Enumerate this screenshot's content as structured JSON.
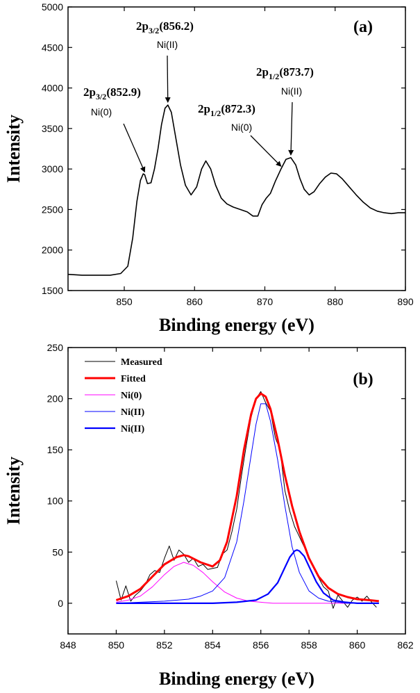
{
  "chart_data": [
    {
      "panel": "(a)",
      "type": "line",
      "xlabel": "Binding energy (eV)",
      "ylabel": "Intensity",
      "xlim": [
        842,
        890
      ],
      "ylim": [
        1500,
        5000
      ],
      "xticks": [
        850,
        860,
        870,
        880,
        890
      ],
      "yticks": [
        1500,
        2000,
        2500,
        3000,
        3500,
        4000,
        4500,
        5000
      ],
      "series": [
        {
          "name": "Ni 2p spectrum",
          "color": "#000000",
          "x": [
            842,
            844,
            846,
            848,
            849.5,
            850.5,
            851.2,
            851.8,
            852.3,
            852.7,
            852.9,
            853.3,
            853.8,
            854.3,
            854.8,
            855.3,
            855.8,
            856.2,
            856.7,
            857.3,
            858,
            858.7,
            859.5,
            860.3,
            861,
            861.6,
            862.3,
            863,
            863.8,
            864.6,
            865.5,
            866.5,
            867.5,
            868.3,
            869,
            869.6,
            870.2,
            870.8,
            871.5,
            872.3,
            873,
            873.7,
            874.4,
            875,
            875.6,
            876.3,
            877,
            877.8,
            878.6,
            879.4,
            880.2,
            881,
            882,
            883,
            884,
            885,
            886,
            887,
            888,
            889,
            890
          ],
          "y": [
            1700,
            1690,
            1690,
            1690,
            1710,
            1800,
            2150,
            2600,
            2860,
            2940,
            2930,
            2820,
            2830,
            3000,
            3250,
            3550,
            3750,
            3790,
            3700,
            3400,
            3050,
            2800,
            2680,
            2780,
            3000,
            3100,
            3000,
            2800,
            2640,
            2570,
            2530,
            2500,
            2470,
            2420,
            2420,
            2560,
            2640,
            2700,
            2850,
            3000,
            3120,
            3140,
            3050,
            2880,
            2750,
            2680,
            2720,
            2820,
            2900,
            2950,
            2940,
            2880,
            2780,
            2680,
            2590,
            2520,
            2480,
            2460,
            2450,
            2460,
            2460
          ]
        }
      ],
      "annotations": [
        {
          "orbital": "2p",
          "subscript": "3/2",
          "energy_text": "(852.9)",
          "state": "Ni(0)",
          "x": 852.9,
          "y": 2930
        },
        {
          "orbital": "2p",
          "subscript": "3/2",
          "energy_text": "(856.2)",
          "state": "Ni(II)",
          "x": 856.2,
          "y": 3790
        },
        {
          "orbital": "2p",
          "subscript": "1/2",
          "energy_text": "(872.3)",
          "state": "Ni(0)",
          "x": 872.3,
          "y": 3000
        },
        {
          "orbital": "2p",
          "subscript": "1/2",
          "energy_text": "(873.7)",
          "state": "Ni(II)",
          "x": 873.7,
          "y": 3140
        }
      ]
    },
    {
      "panel": "(b)",
      "type": "line",
      "xlabel": "Binding energy (eV)",
      "ylabel": "Intensity",
      "xlim": [
        848,
        862
      ],
      "ylim": [
        -30,
        250
      ],
      "xticks": [
        848,
        850,
        852,
        854,
        856,
        858,
        860,
        862
      ],
      "yticks": [
        0,
        50,
        100,
        150,
        200,
        250
      ],
      "series": [
        {
          "name": "Measured",
          "color": "#000000",
          "x": [
            850,
            850.2,
            850.4,
            850.6,
            850.8,
            851,
            851.2,
            851.4,
            851.6,
            851.8,
            852,
            852.2,
            852.4,
            852.6,
            852.8,
            853,
            853.2,
            853.4,
            853.6,
            853.8,
            854,
            854.2,
            854.4,
            854.6,
            854.8,
            855,
            855.2,
            855.4,
            855.6,
            855.8,
            856,
            856.2,
            856.4,
            856.6,
            856.8,
            857,
            857.2,
            857.4,
            857.6,
            857.8,
            858,
            858.2,
            858.4,
            858.6,
            858.8,
            859,
            859.2,
            859.4,
            859.6,
            859.8,
            860,
            860.2,
            860.4,
            860.6,
            860.8
          ],
          "y": [
            22,
            3,
            17,
            2,
            8,
            12,
            18,
            28,
            32,
            30,
            44,
            56,
            42,
            52,
            48,
            40,
            44,
            36,
            38,
            33,
            34,
            35,
            48,
            52,
            70,
            92,
            125,
            155,
            182,
            200,
            207,
            196,
            188,
            162,
            150,
            110,
            90,
            75,
            65,
            55,
            45,
            36,
            25,
            16,
            12,
            -5,
            8,
            2,
            -4,
            3,
            6,
            2,
            7,
            1,
            -4
          ]
        },
        {
          "name": "Fitted",
          "color": "#ff0000",
          "x": [
            850,
            850.5,
            851,
            851.5,
            852,
            852.5,
            852.8,
            853,
            853.5,
            854,
            854.3,
            854.6,
            855,
            855.3,
            855.6,
            855.8,
            856,
            856.2,
            856.4,
            856.7,
            857,
            857.3,
            857.6,
            858,
            858.4,
            858.8,
            859.2,
            859.6,
            860,
            860.5,
            860.9
          ],
          "y": [
            3,
            7,
            14,
            26,
            38,
            45,
            47,
            46,
            40,
            36,
            42,
            60,
            105,
            150,
            185,
            200,
            205,
            202,
            190,
            160,
            125,
            95,
            70,
            44,
            26,
            15,
            9,
            6,
            4,
            3,
            2
          ]
        },
        {
          "name": "Ni(0)",
          "color": "#ff00ff",
          "x": [
            850,
            850.5,
            851,
            851.5,
            852,
            852.4,
            852.8,
            853.2,
            853.6,
            854,
            854.5,
            855,
            855.5,
            856,
            856.5,
            857,
            858,
            859,
            860,
            860.9
          ],
          "y": [
            1,
            3,
            7,
            16,
            28,
            36,
            40,
            37,
            30,
            21,
            11,
            5,
            2,
            1,
            0,
            0,
            0,
            0,
            0,
            0
          ]
        },
        {
          "name": "Ni(II)",
          "color": "#0000ff",
          "x": [
            850,
            851,
            852,
            853,
            853.5,
            854,
            854.5,
            855,
            855.3,
            855.6,
            855.8,
            856,
            856.2,
            856.4,
            856.7,
            857,
            857.3,
            857.6,
            858,
            858.4,
            858.8,
            859.2,
            859.6,
            860,
            860.5,
            860.9
          ],
          "y": [
            0,
            1,
            2,
            4,
            7,
            12,
            25,
            60,
            100,
            145,
            175,
            195,
            195,
            178,
            140,
            95,
            55,
            30,
            12,
            5,
            2,
            1,
            0,
            0,
            0,
            0
          ]
        },
        {
          "name": "Ni(II)",
          "color": "#0000ff",
          "bold": true,
          "x": [
            850,
            852,
            854,
            855,
            855.8,
            856.3,
            856.7,
            857,
            857.2,
            857.4,
            857.5,
            857.6,
            857.8,
            858,
            858.3,
            858.6,
            859,
            859.5,
            860,
            860.9
          ],
          "y": [
            0,
            0,
            0,
            1,
            3,
            9,
            20,
            35,
            45,
            51,
            52,
            51,
            46,
            36,
            21,
            10,
            3,
            1,
            0,
            0
          ]
        }
      ]
    }
  ]
}
